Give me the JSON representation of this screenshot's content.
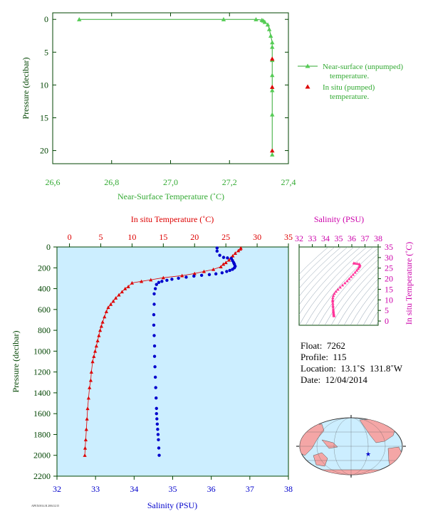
{
  "colors": {
    "green": "#33aa33",
    "green_marker": "#55cc55",
    "red": "#dd0000",
    "blue": "#0000cc",
    "magenta": "#cc00aa",
    "magenta_marker": "#ff3399",
    "panel_bg": "#cceeff",
    "darkgreen": "#004400"
  },
  "chart_data": [
    {
      "type": "line",
      "xlabel": "Near-Surface Temperature (˚C)",
      "ylabel": "Pressure (decibar)",
      "xlim": [
        26.6,
        27.4
      ],
      "ylim": [
        22,
        -1
      ],
      "xticks": [
        "26,6",
        "26,8",
        "27,0",
        "27,2",
        "27,4"
      ],
      "xtick_values": [
        26.6,
        26.8,
        27.0,
        27.2,
        27.4
      ],
      "yticks": [
        0,
        5,
        10,
        15,
        20
      ],
      "legend_placement": "right",
      "series": [
        {
          "name": "Near-surface (unpumped) temperature.",
          "marker": "triangle",
          "x": [
            26.69,
            27.18,
            27.29,
            27.31,
            27.315,
            27.32,
            27.33,
            27.335,
            27.34,
            27.345,
            27.345,
            27.345,
            27.345,
            27.345,
            27.345,
            27.345
          ],
          "y": [
            0.0,
            0.0,
            0.0,
            0.1,
            0.2,
            0.4,
            0.8,
            1.5,
            2.5,
            3.5,
            4.2,
            6.2,
            8.5,
            10.8,
            14.5,
            20.6
          ]
        },
        {
          "name": "In situ (pumped) temperature.",
          "marker": "triangle",
          "x": [
            27.345,
            27.345,
            27.345
          ],
          "y": [
            6.0,
            10.3,
            20.0
          ]
        }
      ]
    },
    {
      "type": "line",
      "x2label": "In situ Temperature (˚C)",
      "xlabel": "Salinity (PSU)",
      "ylabel": "Pressure (decibar)",
      "x2lim": [
        -2,
        35
      ],
      "x2ticks": [
        0,
        5,
        10,
        15,
        20,
        25,
        30,
        35
      ],
      "xlim": [
        32,
        38
      ],
      "xticks": [
        32,
        33,
        34,
        35,
        36,
        37,
        38
      ],
      "ylim": [
        2200,
        0
      ],
      "yticks": [
        0,
        200,
        400,
        600,
        800,
        1000,
        1200,
        1400,
        1600,
        1800,
        2000,
        2200
      ],
      "series": [
        {
          "name": "In situ Temperature (˚C)",
          "axis": "top",
          "marker": "triangle",
          "x": [
            27.4,
            27.3,
            27.0,
            26.5,
            26.1,
            25.8,
            25.5,
            25.0,
            24.6,
            24.2,
            23.0,
            21.5,
            20.0,
            18.0,
            15.0,
            13.0,
            11.5,
            10.0,
            9.4,
            8.9,
            8.4,
            7.9,
            7.4,
            7.0,
            6.6,
            6.2,
            5.9,
            5.6,
            5.3,
            5.1,
            4.9,
            4.7,
            4.5,
            4.3,
            4.1,
            3.9,
            3.7,
            3.5,
            3.4,
            3.2,
            3.05,
            2.9,
            2.8,
            2.7,
            2.6,
            2.5,
            2.45
          ],
          "y": [
            10,
            20,
            35,
            60,
            85,
            105,
            125,
            150,
            165,
            190,
            215,
            235,
            255,
            275,
            295,
            315,
            330,
            345,
            380,
            400,
            430,
            460,
            490,
            520,
            550,
            580,
            620,
            670,
            720,
            760,
            800,
            850,
            900,
            950,
            1000,
            1050,
            1100,
            1200,
            1280,
            1350,
            1450,
            1550,
            1650,
            1750,
            1850,
            1930,
            2000
          ]
        },
        {
          "name": "Salinity (PSU)",
          "axis": "bottom",
          "marker": "circle",
          "x": [
            36.15,
            36.15,
            36.22,
            36.32,
            36.42,
            36.52,
            36.55,
            36.58,
            36.6,
            36.62,
            36.6,
            36.55,
            36.48,
            36.4,
            36.28,
            36.12,
            35.95,
            35.75,
            35.55,
            35.35,
            35.15,
            34.98,
            34.85,
            34.72,
            34.64,
            34.58,
            34.55,
            34.52,
            34.52,
            34.51,
            34.51,
            34.52,
            34.53,
            34.53,
            34.54,
            34.55,
            34.56,
            34.57,
            34.58,
            34.58,
            34.59,
            34.6,
            34.61,
            34.62,
            34.63,
            34.64,
            34.65
          ],
          "y": [
            10,
            40,
            80,
            100,
            105,
            110,
            130,
            150,
            165,
            185,
            200,
            215,
            225,
            235,
            248,
            258,
            265,
            272,
            280,
            290,
            300,
            310,
            320,
            330,
            340,
            360,
            400,
            450,
            550,
            650,
            750,
            850,
            950,
            1050,
            1150,
            1250,
            1350,
            1450,
            1550,
            1600,
            1650,
            1700,
            1750,
            1800,
            1850,
            1930,
            2000
          ]
        }
      ]
    },
    {
      "type": "scatter",
      "title_top": "Salinity (PSU)",
      "ylabel": "In situ Temperature (˚C)",
      "xlim": [
        32,
        38
      ],
      "xticks": [
        32,
        33,
        34,
        35,
        36,
        37,
        38
      ],
      "ylim": [
        -2,
        35
      ],
      "yticks": [
        0,
        5,
        10,
        15,
        20,
        25,
        30,
        35
      ],
      "series": [
        {
          "name": "T-S",
          "x": [
            34.65,
            34.64,
            34.63,
            34.62,
            34.61,
            34.6,
            34.59,
            34.58,
            34.57,
            34.56,
            34.55,
            34.55,
            34.56,
            34.6,
            34.68,
            34.8,
            34.95,
            35.12,
            35.3,
            35.48,
            35.65,
            35.8,
            35.95,
            36.1,
            36.25,
            36.38,
            36.48,
            36.55,
            36.6,
            36.62,
            36.55,
            36.4,
            36.25,
            36.15
          ],
          "y": [
            2.45,
            2.8,
            3.2,
            3.7,
            4.3,
            4.9,
            5.6,
            6.6,
            7.4,
            8.4,
            9.4,
            10.0,
            11.0,
            12.0,
            13.0,
            14.0,
            15.0,
            16.0,
            17.0,
            18.0,
            19.0,
            20.0,
            21.0,
            22.0,
            23.0,
            24.0,
            24.8,
            25.5,
            26.0,
            26.5,
            27.0,
            27.2,
            27.3,
            27.4
          ]
        }
      ]
    }
  ],
  "info": {
    "float": "Float:  7262",
    "profile": "Profile:  115",
    "location": "Location:  13.1˚S  131.8˚W",
    "date": "Date:  12/04/2014"
  },
  "footer_tag": "APEX0014.R 20041215"
}
